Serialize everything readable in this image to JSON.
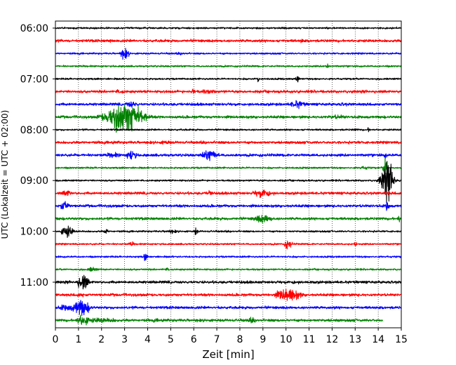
{
  "chart_data": {
    "type": "line",
    "title": "",
    "xlabel": "Zeit  [min]",
    "ylabel": "UTC (Lokalzeit = UTC + 02:00)",
    "xlim": [
      0,
      15
    ],
    "x_ticks": [
      "0",
      "1",
      "2",
      "3",
      "4",
      "5",
      "6",
      "7",
      "8",
      "9",
      "10",
      "11",
      "12",
      "13",
      "14",
      "15"
    ],
    "y_ticks": [
      "06:00",
      "07:00",
      "08:00",
      "09:00",
      "10:00",
      "11:00"
    ],
    "grid": "vertical dotted lines at each minute",
    "trace_interval_minutes": 15,
    "colors": [
      "#000000",
      "#ff0000",
      "#0000ff",
      "#008000"
    ],
    "series": [
      {
        "start": "06:00",
        "color": "#000000",
        "amp": 2,
        "events": [
          {
            "t": 11.8,
            "amp": 4,
            "dur": 0.1
          }
        ]
      },
      {
        "start": "06:15",
        "color": "#ff0000",
        "amp": 3,
        "events": [
          {
            "t": 2.4,
            "amp": 5,
            "dur": 0.1
          },
          {
            "t": 10.7,
            "amp": 6,
            "dur": 0.15
          }
        ]
      },
      {
        "start": "06:30",
        "color": "#0000ff",
        "amp": 2,
        "events": [
          {
            "t": 3.0,
            "amp": 12,
            "dur": 0.25
          },
          {
            "t": 5.5,
            "amp": 3,
            "dur": 0.5
          }
        ]
      },
      {
        "start": "06:45",
        "color": "#008000",
        "amp": 2,
        "events": [
          {
            "t": 11.8,
            "amp": 9,
            "dur": 0.1
          }
        ]
      },
      {
        "start": "07:00",
        "color": "#000000",
        "amp": 2,
        "events": [
          {
            "t": 8.8,
            "amp": 9,
            "dur": 0.1
          },
          {
            "t": 10.5,
            "amp": 10,
            "dur": 0.1
          }
        ]
      },
      {
        "start": "07:15",
        "color": "#ff0000",
        "amp": 3,
        "events": [
          {
            "t": 6.0,
            "amp": 11,
            "dur": 0.1
          },
          {
            "t": 6.6,
            "amp": 5,
            "dur": 0.8
          },
          {
            "t": 2.8,
            "amp": 5,
            "dur": 0.6
          }
        ]
      },
      {
        "start": "07:30",
        "color": "#0000ff",
        "amp": 3,
        "events": [
          {
            "t": 10.5,
            "amp": 9,
            "dur": 0.5
          },
          {
            "t": 12.5,
            "amp": 4,
            "dur": 0.4
          },
          {
            "t": 3.3,
            "amp": 8,
            "dur": 0.4
          }
        ]
      },
      {
        "start": "07:45",
        "color": "#008000",
        "amp": 3,
        "events": [
          {
            "t": 3.0,
            "amp": 38,
            "dur": 1.0
          },
          {
            "t": 2.6,
            "amp": 45,
            "dur": 0.1
          },
          {
            "t": 3.3,
            "amp": 45,
            "dur": 0.1
          },
          {
            "t": 12.2,
            "amp": 5,
            "dur": 0.8
          }
        ]
      },
      {
        "start": "08:00",
        "color": "#000000",
        "amp": 2,
        "events": [
          {
            "t": 13.6,
            "amp": 6,
            "dur": 0.1
          },
          {
            "t": 13.0,
            "amp": 3,
            "dur": 0.3
          }
        ]
      },
      {
        "start": "08:15",
        "color": "#ff0000",
        "amp": 3,
        "events": [
          {
            "t": 4.8,
            "amp": 5,
            "dur": 0.5
          },
          {
            "t": 2.5,
            "amp": 4,
            "dur": 0.4
          }
        ]
      },
      {
        "start": "08:30",
        "color": "#0000ff",
        "amp": 3,
        "events": [
          {
            "t": 3.3,
            "amp": 12,
            "dur": 0.3
          },
          {
            "t": 2.5,
            "amp": 6,
            "dur": 0.5
          },
          {
            "t": 6.7,
            "amp": 12,
            "dur": 0.5
          },
          {
            "t": 14.3,
            "amp": 8,
            "dur": 0.1
          }
        ]
      },
      {
        "start": "08:45",
        "color": "#008000",
        "amp": 2,
        "events": [
          {
            "t": 14.3,
            "amp": 30,
            "dur": 0.1
          },
          {
            "t": 13.4,
            "amp": 4,
            "dur": 0.4
          }
        ]
      },
      {
        "start": "09:00",
        "color": "#000000",
        "amp": 2,
        "events": [
          {
            "t": 14.4,
            "amp": 42,
            "dur": 0.35
          }
        ]
      },
      {
        "start": "09:15",
        "color": "#ff0000",
        "amp": 3,
        "events": [
          {
            "t": 0.5,
            "amp": 8,
            "dur": 0.3
          },
          {
            "t": 6.7,
            "amp": 12,
            "dur": 0.1
          },
          {
            "t": 9.0,
            "amp": 10,
            "dur": 0.6
          }
        ]
      },
      {
        "start": "09:30",
        "color": "#0000ff",
        "amp": 3,
        "events": [
          {
            "t": 0.4,
            "amp": 12,
            "dur": 0.3
          },
          {
            "t": 14.4,
            "amp": 15,
            "dur": 0.1
          }
        ]
      },
      {
        "start": "09:45",
        "color": "#008000",
        "amp": 3,
        "events": [
          {
            "t": 9.0,
            "amp": 10,
            "dur": 0.6
          },
          {
            "t": 14.9,
            "amp": 10,
            "dur": 0.1
          }
        ]
      },
      {
        "start": "10:00",
        "color": "#000000",
        "amp": 2,
        "events": [
          {
            "t": 0.5,
            "amp": 14,
            "dur": 0.35
          },
          {
            "t": 2.2,
            "amp": 9,
            "dur": 0.1
          },
          {
            "t": 6.1,
            "amp": 10,
            "dur": 0.1
          },
          {
            "t": 5.0,
            "amp": 4,
            "dur": 0.5
          }
        ]
      },
      {
        "start": "10:15",
        "color": "#ff0000",
        "amp": 2,
        "events": [
          {
            "t": 10.1,
            "amp": 12,
            "dur": 0.2
          },
          {
            "t": 13.0,
            "amp": 6,
            "dur": 0.1
          },
          {
            "t": 3.3,
            "amp": 5,
            "dur": 0.2
          }
        ]
      },
      {
        "start": "10:30",
        "color": "#0000ff",
        "amp": 2,
        "events": [
          {
            "t": 3.9,
            "amp": 11,
            "dur": 0.1
          }
        ]
      },
      {
        "start": "10:45",
        "color": "#008000",
        "amp": 2,
        "events": [
          {
            "t": 1.6,
            "amp": 6,
            "dur": 0.3
          },
          {
            "t": 4.8,
            "amp": 4,
            "dur": 0.3
          }
        ]
      },
      {
        "start": "11:00",
        "color": "#000000",
        "amp": 3,
        "events": [
          {
            "t": 1.2,
            "amp": 20,
            "dur": 0.3
          },
          {
            "t": 10.4,
            "amp": 5,
            "dur": 0.3
          }
        ]
      },
      {
        "start": "11:15",
        "color": "#ff0000",
        "amp": 3,
        "events": [
          {
            "t": 10.1,
            "amp": 16,
            "dur": 0.7
          },
          {
            "t": 1.1,
            "amp": 6,
            "dur": 0.3
          }
        ]
      },
      {
        "start": "11:30",
        "color": "#0000ff",
        "amp": 3,
        "events": [
          {
            "t": 1.1,
            "amp": 20,
            "dur": 0.5
          },
          {
            "t": 0.5,
            "amp": 8,
            "dur": 0.5
          }
        ]
      },
      {
        "start": "11:45",
        "color": "#008000",
        "amp": 3,
        "end_min": 14.2,
        "events": [
          {
            "t": 1.2,
            "amp": 14,
            "dur": 0.4
          },
          {
            "t": 2.0,
            "amp": 6,
            "dur": 1.2
          },
          {
            "t": 8.5,
            "amp": 6,
            "dur": 0.3
          },
          {
            "t": 4.5,
            "amp": 4,
            "dur": 0.8
          }
        ]
      }
    ]
  }
}
